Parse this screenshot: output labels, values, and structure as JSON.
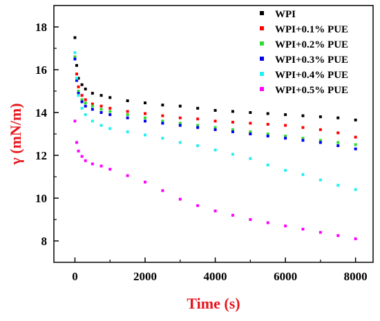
{
  "chart_data": {
    "type": "scatter",
    "title": "",
    "xlabel": "Time (s)",
    "ylabel": "γ (mN/m)",
    "axis_title_color": "#e8141b",
    "xlim": [
      -600,
      8500
    ],
    "ylim": [
      7.0,
      19.0
    ],
    "xticks": [
      0,
      2000,
      4000,
      6000,
      8000
    ],
    "yticks": [
      8,
      10,
      12,
      14,
      16,
      18
    ],
    "xtick_labels": [
      "0",
      "2000",
      "4000",
      "6000",
      "8000"
    ],
    "ytick_labels": [
      "8",
      "10",
      "12",
      "14",
      "16",
      "18"
    ],
    "grid": false,
    "legend_position": "top-right",
    "series": [
      {
        "name": "WPI",
        "color": "#000000",
        "x": [
          0,
          50,
          100,
          200,
          300,
          500,
          750,
          1000,
          1500,
          2000,
          2500,
          3000,
          3500,
          4000,
          4500,
          5000,
          5500,
          6000,
          6500,
          7000,
          7500,
          8000
        ],
        "y": [
          17.5,
          16.2,
          15.6,
          15.3,
          15.1,
          14.9,
          14.8,
          14.7,
          14.55,
          14.45,
          14.35,
          14.3,
          14.2,
          14.1,
          14.05,
          14.0,
          13.95,
          13.9,
          13.85,
          13.8,
          13.75,
          13.65
        ]
      },
      {
        "name": "WPI+0.1% PUE",
        "color": "#ff0000",
        "x": [
          0,
          50,
          100,
          200,
          300,
          500,
          750,
          1000,
          1500,
          2000,
          2500,
          3000,
          3500,
          4000,
          4500,
          5000,
          5500,
          6000,
          6500,
          7000,
          7500,
          8000
        ],
        "y": [
          16.6,
          15.8,
          15.2,
          14.8,
          14.6,
          14.4,
          14.3,
          14.2,
          14.05,
          13.95,
          13.85,
          13.75,
          13.7,
          13.6,
          13.55,
          13.5,
          13.45,
          13.4,
          13.3,
          13.2,
          13.05,
          12.85
        ]
      },
      {
        "name": "WPI+0.2% PUE",
        "color": "#2edc2e",
        "x": [
          0,
          50,
          100,
          200,
          300,
          500,
          750,
          1000,
          1500,
          2000,
          2500,
          3000,
          3500,
          4000,
          4500,
          5000,
          5500,
          6000,
          6500,
          7000,
          7500,
          8000
        ],
        "y": [
          16.6,
          15.6,
          15.0,
          14.6,
          14.45,
          14.3,
          14.15,
          14.05,
          13.9,
          13.75,
          13.6,
          13.5,
          13.4,
          13.3,
          13.2,
          13.1,
          13.0,
          12.9,
          12.8,
          12.7,
          12.6,
          12.5
        ]
      },
      {
        "name": "WPI+0.3% PUE",
        "color": "#0000ee",
        "x": [
          0,
          50,
          100,
          200,
          300,
          500,
          750,
          1000,
          1500,
          2000,
          2500,
          3000,
          3500,
          4000,
          4500,
          5000,
          5500,
          6000,
          6500,
          7000,
          7500,
          8000
        ],
        "y": [
          16.5,
          15.5,
          14.9,
          14.5,
          14.3,
          14.15,
          14.0,
          13.9,
          13.75,
          13.6,
          13.5,
          13.4,
          13.3,
          13.2,
          13.1,
          13.0,
          12.9,
          12.8,
          12.7,
          12.6,
          12.45,
          12.3
        ]
      },
      {
        "name": "WPI+0.4% PUE",
        "color": "#22f0f0",
        "x": [
          0,
          50,
          100,
          200,
          300,
          500,
          750,
          1000,
          1500,
          2000,
          2500,
          3000,
          3500,
          4000,
          4500,
          5000,
          5500,
          6000,
          6500,
          7000,
          7500,
          8000
        ],
        "y": [
          16.8,
          15.6,
          14.8,
          14.2,
          13.9,
          13.6,
          13.4,
          13.25,
          13.1,
          12.95,
          12.8,
          12.6,
          12.45,
          12.25,
          12.05,
          11.85,
          11.55,
          11.3,
          11.1,
          10.85,
          10.6,
          10.4
        ]
      },
      {
        "name": "WPI+0.5% PUE",
        "color": "#ff00ff",
        "x": [
          0,
          50,
          100,
          200,
          300,
          500,
          750,
          1000,
          1500,
          2000,
          2500,
          3000,
          3500,
          4000,
          4500,
          5000,
          5500,
          6000,
          6500,
          7000,
          7500,
          8000
        ],
        "y": [
          13.6,
          12.6,
          12.2,
          11.95,
          11.75,
          11.6,
          11.5,
          11.35,
          11.05,
          10.75,
          10.35,
          9.95,
          9.65,
          9.4,
          9.2,
          9.0,
          8.85,
          8.7,
          8.55,
          8.4,
          8.25,
          8.1
        ]
      }
    ]
  }
}
